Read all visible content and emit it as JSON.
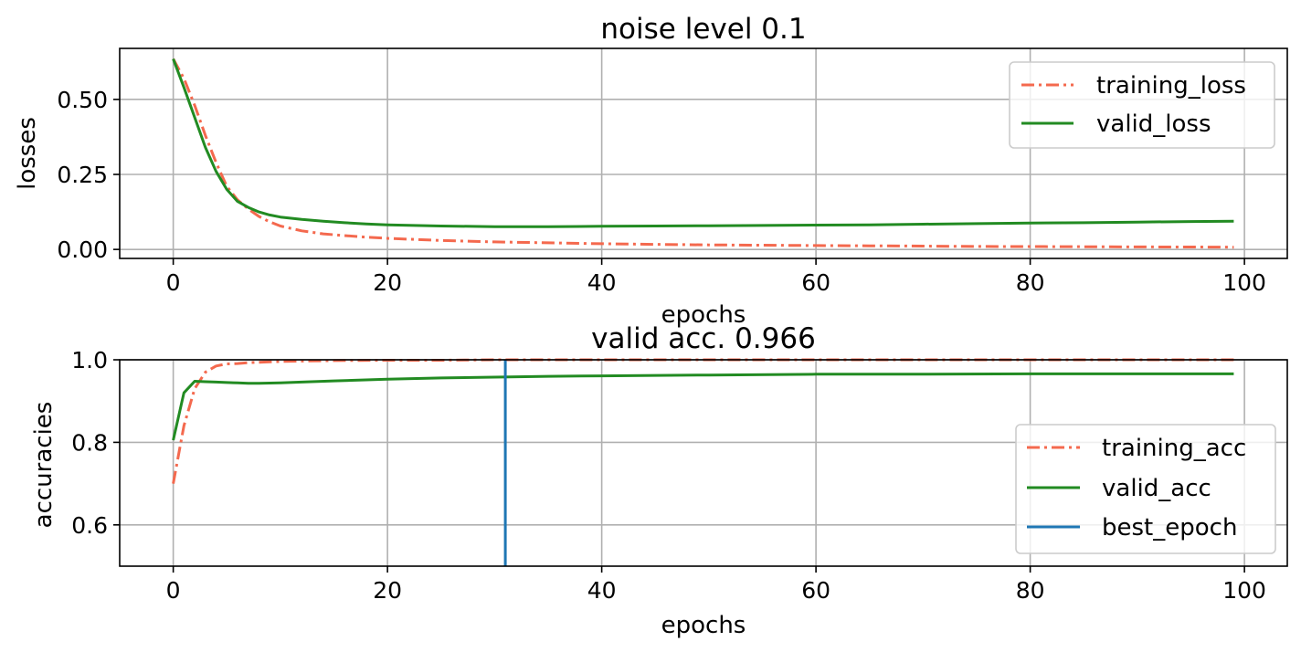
{
  "chart_data": [
    {
      "type": "line",
      "title": "noise level 0.1",
      "xlabel": "epochs",
      "ylabel": "losses",
      "xlim": [
        -5,
        104
      ],
      "ylim": [
        -0.03,
        0.67
      ],
      "xticks": [
        0,
        20,
        40,
        60,
        80,
        100
      ],
      "xtick_labels": [
        "0",
        "20",
        "40",
        "60",
        "80",
        "100"
      ],
      "yticks": [
        0.0,
        0.25,
        0.5
      ],
      "ytick_labels": [
        "0.00",
        "0.25",
        "0.50"
      ],
      "grid": true,
      "legend_position": "upper-right",
      "x": [
        0,
        1,
        2,
        3,
        4,
        5,
        6,
        7,
        8,
        9,
        10,
        12,
        14,
        16,
        18,
        20,
        25,
        30,
        35,
        40,
        45,
        50,
        55,
        60,
        65,
        70,
        75,
        80,
        85,
        90,
        95,
        99
      ],
      "series": [
        {
          "name": "training_loss",
          "color": "#f4694e",
          "style": "dashdot",
          "values": [
            0.635,
            0.57,
            0.48,
            0.38,
            0.29,
            0.21,
            0.165,
            0.135,
            0.11,
            0.092,
            0.078,
            0.062,
            0.052,
            0.046,
            0.041,
            0.037,
            0.03,
            0.025,
            0.022,
            0.019,
            0.017,
            0.015,
            0.014,
            0.013,
            0.012,
            0.011,
            0.01,
            0.0095,
            0.009,
            0.0085,
            0.008,
            0.0075
          ]
        },
        {
          "name": "valid_loss",
          "color": "#228b22",
          "style": "solid",
          "values": [
            0.635,
            0.54,
            0.44,
            0.34,
            0.26,
            0.2,
            0.16,
            0.14,
            0.125,
            0.115,
            0.108,
            0.1,
            0.094,
            0.089,
            0.085,
            0.082,
            0.078,
            0.076,
            0.076,
            0.077,
            0.078,
            0.079,
            0.08,
            0.081,
            0.082,
            0.084,
            0.086,
            0.088,
            0.089,
            0.091,
            0.093,
            0.094
          ]
        }
      ]
    },
    {
      "type": "line",
      "title": "valid acc. 0.966",
      "xlabel": "epochs",
      "ylabel": "accuracies",
      "xlim": [
        -5,
        104
      ],
      "ylim": [
        0.5,
        1.0
      ],
      "xticks": [
        0,
        20,
        40,
        60,
        80,
        100
      ],
      "xtick_labels": [
        "0",
        "20",
        "40",
        "60",
        "80",
        "100"
      ],
      "yticks": [
        0.6,
        0.8,
        1.0
      ],
      "ytick_labels": [
        "0.6",
        "0.8",
        "1.0"
      ],
      "grid": true,
      "legend_position": "lower-right",
      "x": [
        0,
        1,
        2,
        3,
        4,
        5,
        6,
        7,
        8,
        10,
        12,
        15,
        20,
        25,
        30,
        35,
        40,
        50,
        60,
        70,
        80,
        90,
        99
      ],
      "series": [
        {
          "name": "training_acc",
          "color": "#f4694e",
          "style": "dashdot",
          "values": [
            0.7,
            0.84,
            0.93,
            0.97,
            0.985,
            0.99,
            0.991,
            0.993,
            0.994,
            0.996,
            0.997,
            0.998,
            0.999,
            0.999,
            1.0,
            1.0,
            1.0,
            1.0,
            1.0,
            1.0,
            1.0,
            1.0,
            1.0
          ]
        },
        {
          "name": "valid_acc",
          "color": "#228b22",
          "style": "solid",
          "values": [
            0.805,
            0.92,
            0.948,
            0.947,
            0.946,
            0.945,
            0.944,
            0.943,
            0.943,
            0.944,
            0.946,
            0.949,
            0.953,
            0.956,
            0.958,
            0.96,
            0.961,
            0.963,
            0.965,
            0.965,
            0.966,
            0.966,
            0.966
          ]
        }
      ],
      "vline": {
        "name": "best_epoch",
        "color": "#1f77b4",
        "x": 31
      }
    }
  ]
}
